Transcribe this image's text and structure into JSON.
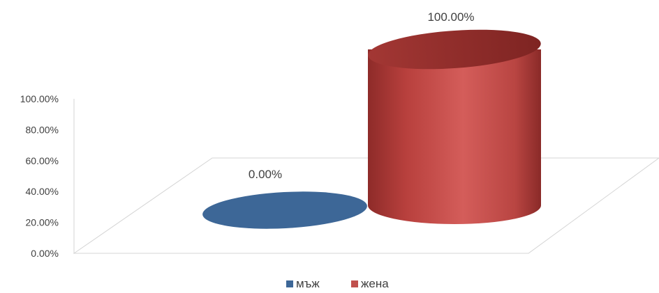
{
  "chart_data": {
    "type": "bar",
    "style": "3d-cylinder",
    "categories": [
      "мъж",
      "жена"
    ],
    "series": [
      {
        "name": "мъж",
        "value": 0.0,
        "color": "#3d6797",
        "label": "0.00%"
      },
      {
        "name": "жена",
        "value": 100.0,
        "color": "#c0504d",
        "label": "100.00%"
      }
    ],
    "y_ticks": [
      "0.00%",
      "20.00%",
      "40.00%",
      "60.00%",
      "80.00%",
      "100.00%"
    ],
    "ylim": [
      0,
      100
    ],
    "grid": false,
    "legend_position": "bottom"
  }
}
